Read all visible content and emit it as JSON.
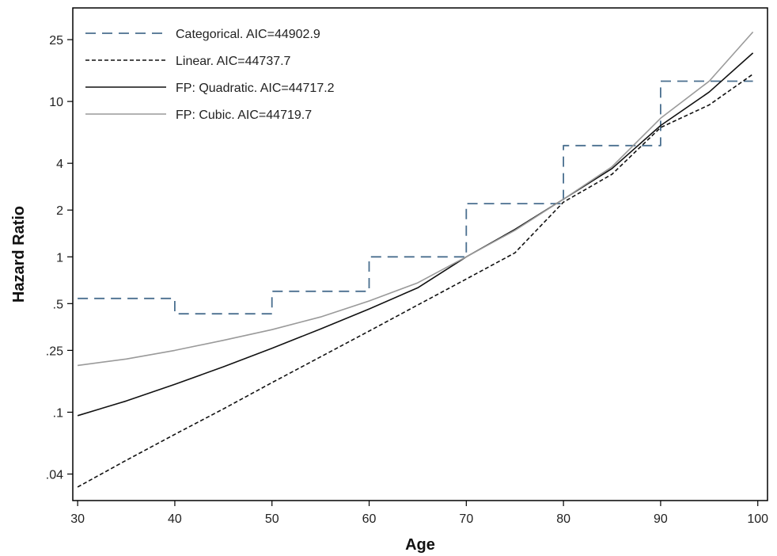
{
  "chart_data": {
    "type": "line",
    "title": "",
    "xlabel": "Age",
    "ylabel": "Hazard Ratio",
    "x_scale": "linear",
    "y_scale": "log",
    "xlim": [
      29.5,
      101
    ],
    "ylim": [
      0.027,
      40
    ],
    "x_ticks": [
      30,
      40,
      50,
      60,
      70,
      80,
      90,
      100
    ],
    "x_tick_labels": [
      "30",
      "40",
      "50",
      "60",
      "70",
      "80",
      "90",
      "100"
    ],
    "y_ticks": [
      0.04,
      0.1,
      0.25,
      0.5,
      1,
      2,
      4,
      10,
      25
    ],
    "y_tick_labels": [
      ".04",
      ".1",
      ".25",
      ".5",
      "1",
      "2",
      "4",
      "10",
      "25"
    ],
    "grid": false,
    "legend_position": "top-left",
    "series": [
      {
        "name": "Categorical. AIC=44902.9",
        "style": "step",
        "color": "#4a6f8f",
        "dash": "long-dash",
        "x": [
          30,
          40,
          40,
          50,
          50,
          60,
          60,
          70,
          70,
          80,
          80,
          90,
          90,
          99.5
        ],
        "y": [
          0.54,
          0.54,
          0.43,
          0.43,
          0.6,
          0.6,
          1.0,
          1.0,
          2.2,
          2.2,
          5.2,
          5.2,
          13.5,
          13.5
        ]
      },
      {
        "name": "Linear. AIC=44737.7",
        "style": "line",
        "color": "#111111",
        "dash": "short-dash",
        "x": [
          30,
          35,
          40,
          45,
          50,
          55,
          60,
          65,
          70,
          75,
          80,
          85,
          90,
          95,
          99.5
        ],
        "y": [
          0.033,
          0.049,
          0.072,
          0.105,
          0.155,
          0.227,
          0.333,
          0.49,
          0.72,
          1.06,
          2.25,
          3.4,
          6.8,
          9.5,
          15.0
        ]
      },
      {
        "name": "FP: Quadratic. AIC=44717.2",
        "style": "line",
        "color": "#111111",
        "dash": "solid",
        "x": [
          30,
          35,
          40,
          45,
          50,
          55,
          60,
          65,
          70,
          75,
          80,
          85,
          90,
          95,
          99.5
        ],
        "y": [
          0.095,
          0.118,
          0.151,
          0.196,
          0.258,
          0.343,
          0.462,
          0.632,
          1.0,
          1.5,
          2.35,
          3.7,
          7.0,
          11.5,
          20.5
        ]
      },
      {
        "name": "FP: Cubic. AIC=44719.7",
        "style": "line",
        "color": "#9a9a9a",
        "dash": "solid",
        "x": [
          30,
          35,
          40,
          45,
          50,
          55,
          60,
          65,
          70,
          75,
          80,
          85,
          90,
          95,
          99.5
        ],
        "y": [
          0.2,
          0.22,
          0.25,
          0.29,
          0.34,
          0.41,
          0.52,
          0.68,
          1.0,
          1.48,
          2.35,
          3.8,
          7.8,
          13.5,
          28.0
        ]
      }
    ]
  }
}
